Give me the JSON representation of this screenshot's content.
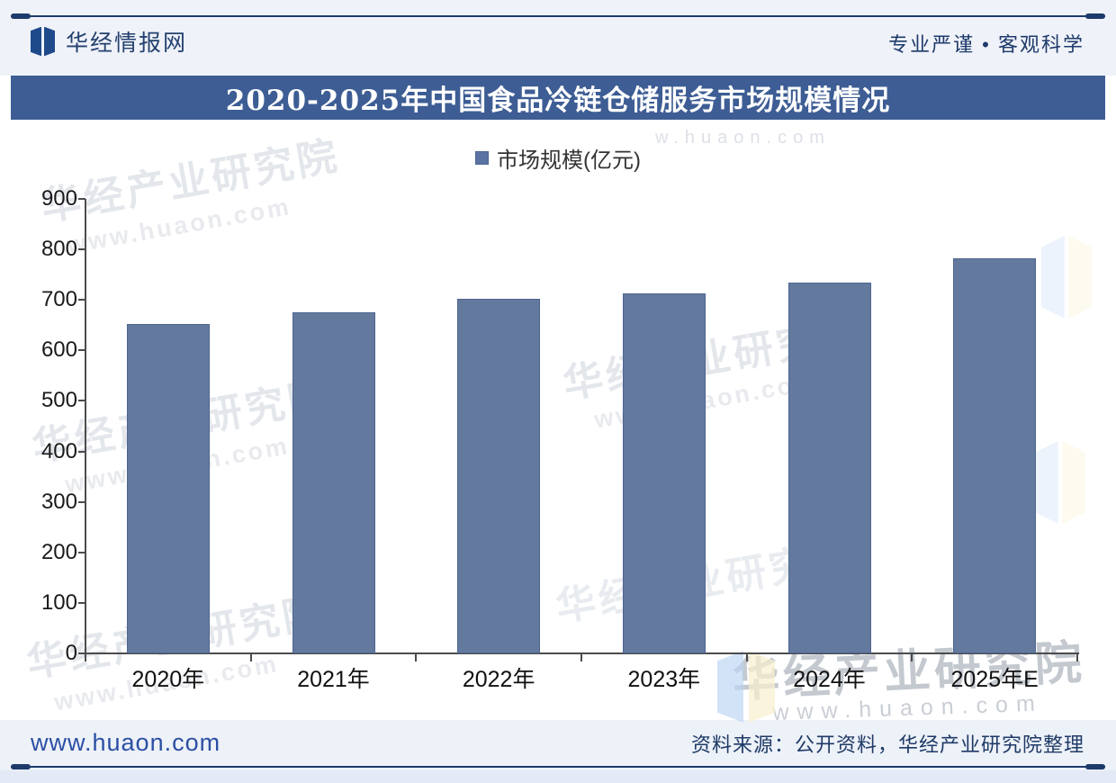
{
  "header": {
    "brand": "华经情报网",
    "slogan": "专业严谨 • 客观科学",
    "logo": "huajing-logo"
  },
  "title_bar": {
    "title": "2020-2025年中国食品冷链仓储服务市场规模情况"
  },
  "legend": {
    "label": "市场规模(亿元)",
    "swatch_color": "#5b73a2"
  },
  "chart_data": {
    "type": "bar",
    "title": "2020-2025年中国食品冷链仓储服务市场规模情况",
    "series_name": "市场规模(亿元)",
    "categories": [
      "2020年",
      "2021年",
      "2022年",
      "2023年",
      "2024年",
      "2025年E"
    ],
    "values": [
      652,
      675,
      703,
      713,
      735,
      782
    ],
    "ylabel": "",
    "xlabel": "",
    "ylim": [
      0,
      900
    ],
    "ytick_step": 100,
    "grid": false,
    "legend_position": "top-center",
    "bar_color": "#63799e",
    "bar_border_color": "#4e6590"
  },
  "watermarks": {
    "name": "华经产业研究院",
    "url": "www.huaon.com",
    "url_spaced": "w.huaon.com"
  },
  "footer": {
    "website": "www.huaon.com",
    "source": "资料来源：公开资料，华经产业研究院整理"
  },
  "colors": {
    "accent_navy": "#1d3a6b",
    "title_bar_bg": "#3d5d94",
    "link_blue": "#2b4fa3",
    "header_bg": "#eff2f8",
    "axis_gray": "#4c4c4c"
  }
}
